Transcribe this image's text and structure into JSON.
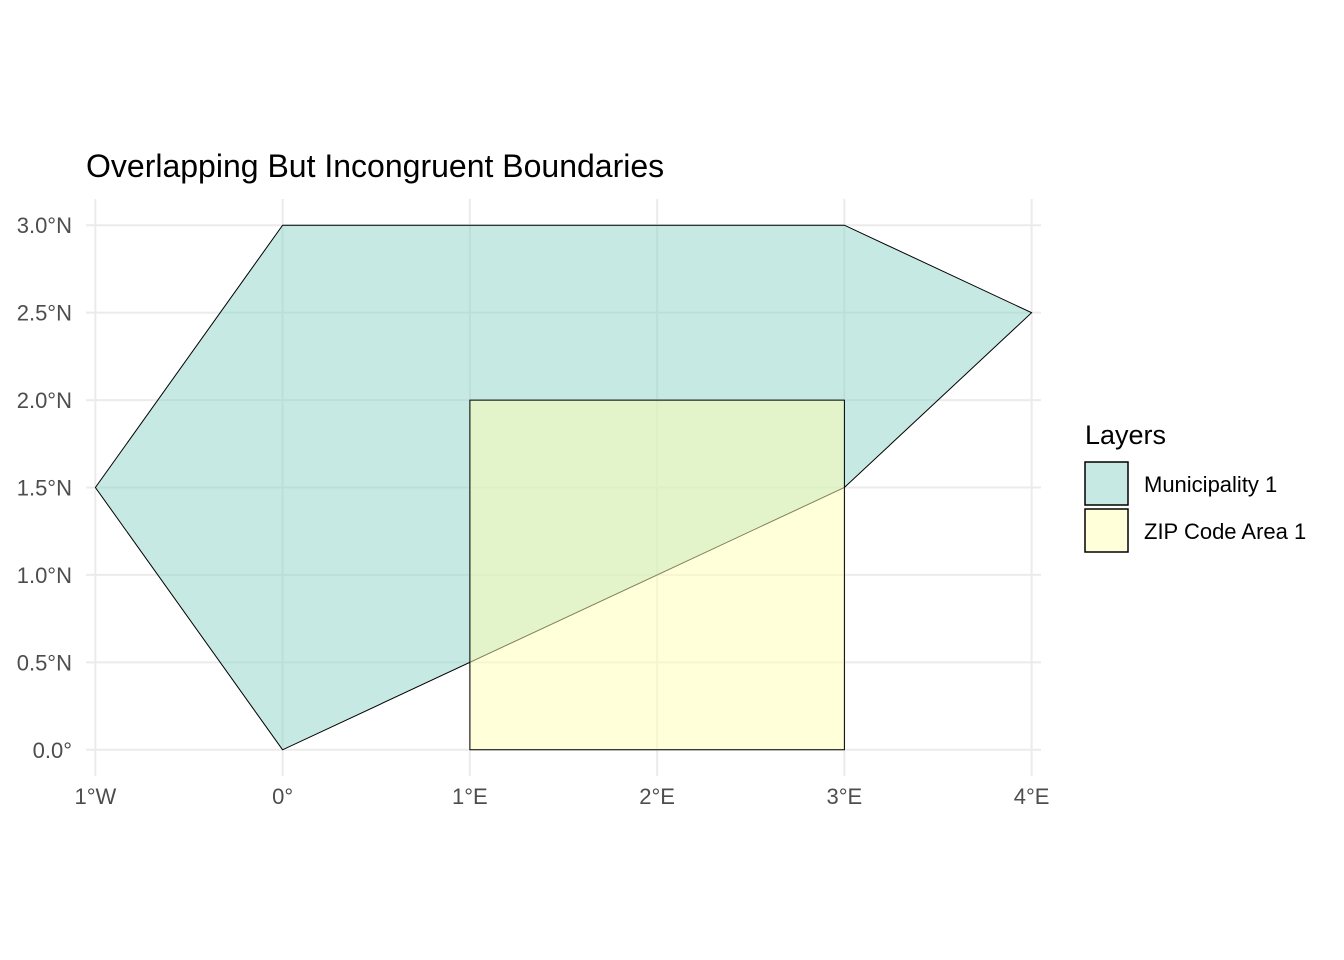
{
  "chart_data": {
    "type": "map",
    "title": "Overlapping But Incongruent Boundaries",
    "xlabel": "",
    "ylabel": "",
    "xlim": [
      -1.05,
      4.05
    ],
    "ylim": [
      -0.15,
      3.15
    ],
    "x_ticks": [
      {
        "value": -1,
        "label": "1°W"
      },
      {
        "value": 0,
        "label": "0°"
      },
      {
        "value": 1,
        "label": "1°E"
      },
      {
        "value": 2,
        "label": "2°E"
      },
      {
        "value": 3,
        "label": "3°E"
      },
      {
        "value": 4,
        "label": "4°E"
      }
    ],
    "y_ticks": [
      {
        "value": 0,
        "label": "0.0°"
      },
      {
        "value": 0.5,
        "label": "0.5°N"
      },
      {
        "value": 1,
        "label": "1.0°N"
      },
      {
        "value": 1.5,
        "label": "1.5°N"
      },
      {
        "value": 2,
        "label": "2.0°N"
      },
      {
        "value": 2.5,
        "label": "2.5°N"
      },
      {
        "value": 3,
        "label": "3.0°N"
      }
    ],
    "grid": true,
    "legend": {
      "title": "Layers",
      "placement": "right"
    },
    "layers": [
      {
        "name": "Municipality 1",
        "fill": "#8dd3c7",
        "opacity": 0.5,
        "polygon": [
          [
            0,
            0
          ],
          [
            -1,
            1.5
          ],
          [
            0,
            3
          ],
          [
            3,
            3
          ],
          [
            4,
            2.5
          ],
          [
            3,
            1.5
          ],
          [
            0,
            0
          ]
        ]
      },
      {
        "name": "ZIP Code Area 1",
        "fill": "#ffffb3",
        "opacity": 0.5,
        "polygon": [
          [
            1,
            0
          ],
          [
            1,
            2
          ],
          [
            3,
            2
          ],
          [
            3,
            0
          ],
          [
            1,
            0
          ]
        ]
      }
    ]
  }
}
